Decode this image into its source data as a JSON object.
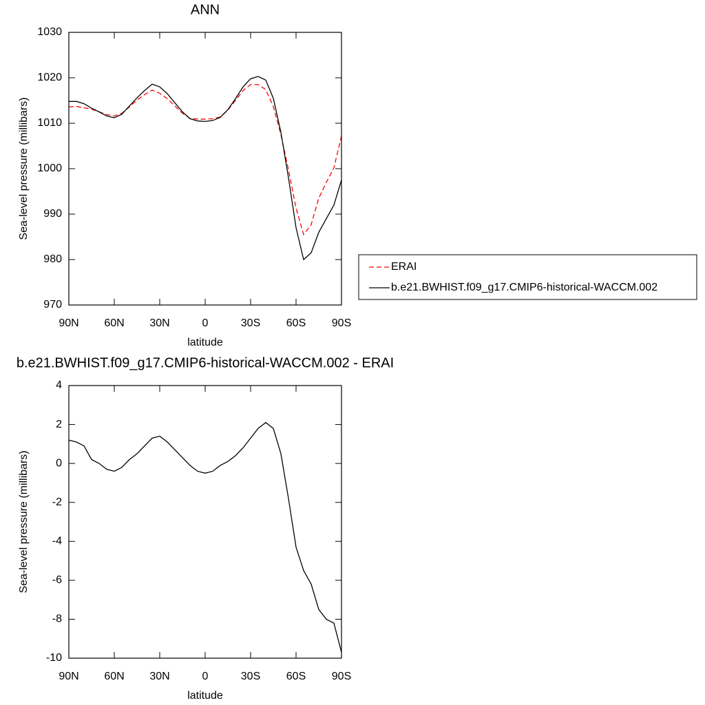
{
  "chart_data": [
    {
      "type": "line",
      "title": "ANN",
      "xlabel": "latitude",
      "ylabel": "Sea-level pressure (millibars)",
      "x": [
        90,
        85,
        80,
        75,
        70,
        65,
        60,
        55,
        50,
        45,
        40,
        35,
        30,
        25,
        20,
        15,
        10,
        5,
        0,
        -5,
        -10,
        -15,
        -20,
        -25,
        -30,
        -35,
        -40,
        -45,
        -50,
        -55,
        -60,
        -65,
        -70,
        -75,
        -80,
        -85,
        -90
      ],
      "xlim": [
        90,
        -90
      ],
      "xticks": [
        {
          "value": 90,
          "label": "90N"
        },
        {
          "value": 60,
          "label": "60N"
        },
        {
          "value": 30,
          "label": "30N"
        },
        0,
        {
          "value": -30,
          "label": "30S"
        },
        {
          "value": -60,
          "label": "60S"
        },
        {
          "value": -90,
          "label": "90S"
        }
      ],
      "ylim": [
        970,
        1030
      ],
      "yticks": [
        970,
        980,
        990,
        1000,
        1010,
        1020,
        1030
      ],
      "legend": "right",
      "series": [
        {
          "name": "ERAI",
          "color": "#ff0000",
          "line_style": "dashed",
          "values": [
            1013.6,
            1013.7,
            1013.4,
            1013.1,
            1012.5,
            1011.9,
            1011.6,
            1012.2,
            1013.6,
            1015.1,
            1016.3,
            1017.3,
            1016.6,
            1015.4,
            1013.8,
            1012.2,
            1011.1,
            1010.9,
            1010.9,
            1011.0,
            1011.4,
            1012.9,
            1015.0,
            1017.2,
            1018.5,
            1018.5,
            1017.4,
            1013.7,
            1007.5,
            999.8,
            991.3,
            985.5,
            987.7,
            993.5,
            997.0,
            1000.2,
            1007.2
          ]
        },
        {
          "name": "b.e21.BWHIST.f09_g17.CMIP6-historical-WACCM.002",
          "color": "#000000",
          "line_style": "solid",
          "values": [
            1014.8,
            1014.8,
            1014.3,
            1013.3,
            1012.5,
            1011.6,
            1011.2,
            1012.0,
            1013.8,
            1015.6,
            1017.2,
            1018.6,
            1018.0,
            1016.5,
            1014.5,
            1012.5,
            1011.0,
            1010.5,
            1010.4,
            1010.6,
            1011.3,
            1013.0,
            1015.4,
            1018.0,
            1019.8,
            1020.3,
            1019.5,
            1015.5,
            1008.0,
            998.0,
            987.0,
            980.0,
            981.5,
            986.0,
            989.0,
            992.0,
            997.5
          ]
        }
      ]
    },
    {
      "type": "line",
      "title": "b.e21.BWHIST.f09_g17.CMIP6-historical-WACCM.002 - ERAI",
      "xlabel": "latitude",
      "ylabel": "Sea-level pressure (millibars)",
      "x": [
        90,
        85,
        80,
        75,
        70,
        65,
        60,
        55,
        50,
        45,
        40,
        35,
        30,
        25,
        20,
        15,
        10,
        5,
        0,
        -5,
        -10,
        -15,
        -20,
        -25,
        -30,
        -35,
        -40,
        -45,
        -50,
        -55,
        -60,
        -65,
        -70,
        -75,
        -80,
        -85,
        -90
      ],
      "xlim": [
        90,
        -90
      ],
      "xticks": [
        {
          "value": 90,
          "label": "90N"
        },
        {
          "value": 60,
          "label": "60N"
        },
        {
          "value": 30,
          "label": "30N"
        },
        0,
        {
          "value": -30,
          "label": "30S"
        },
        {
          "value": -60,
          "label": "60S"
        },
        {
          "value": -90,
          "label": "90S"
        }
      ],
      "ylim": [
        -10,
        4
      ],
      "yticks": [
        -10,
        -8,
        -6,
        -4,
        -2,
        0,
        2,
        4
      ],
      "series": [
        {
          "color": "#000000",
          "line_style": "solid",
          "values": [
            1.2,
            1.1,
            0.9,
            0.2,
            0.0,
            -0.3,
            -0.4,
            -0.2,
            0.2,
            0.5,
            0.9,
            1.3,
            1.4,
            1.1,
            0.7,
            0.3,
            -0.1,
            -0.4,
            -0.5,
            -0.4,
            -0.1,
            0.1,
            0.4,
            0.8,
            1.3,
            1.8,
            2.1,
            1.8,
            0.5,
            -1.8,
            -4.3,
            -5.5,
            -6.2,
            -7.5,
            -8.0,
            -8.2,
            -9.7
          ]
        }
      ]
    }
  ]
}
